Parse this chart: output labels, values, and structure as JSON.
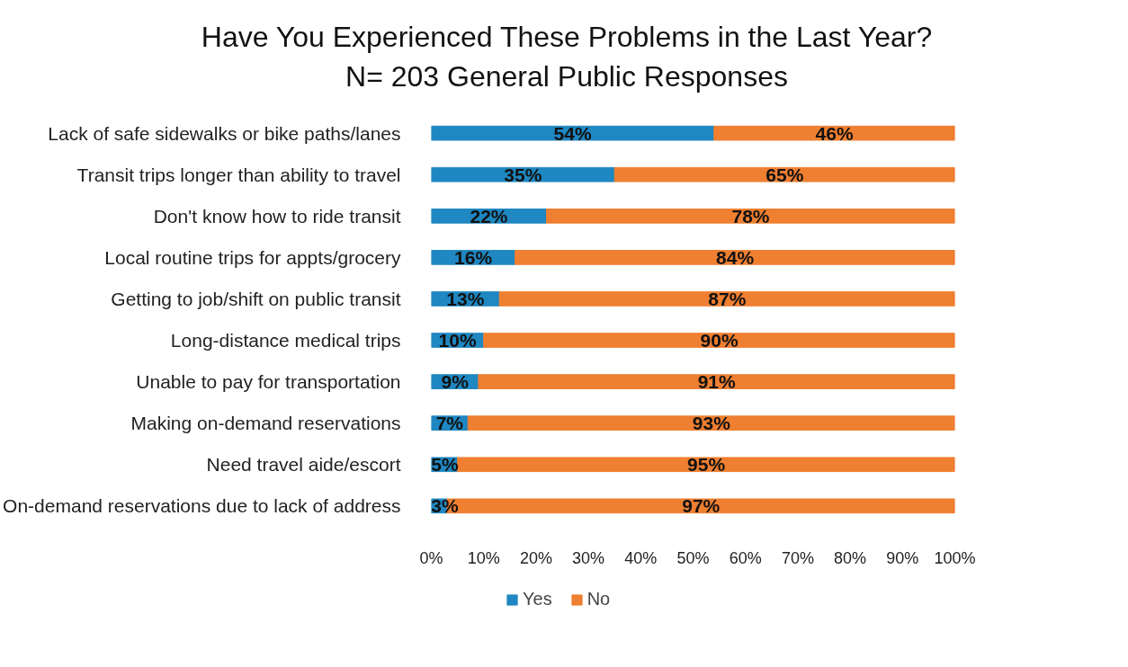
{
  "chart_data": {
    "type": "bar",
    "orientation": "horizontal",
    "stacked": true,
    "title": "Have You Experienced These Problems in the Last Year?",
    "subtitle": "N= 203 General Public Responses",
    "categories": [
      "Lack of safe sidewalks or bike paths/lanes",
      "Transit trips longer than ability to travel",
      "Don't know how to ride transit",
      "Local routine trips for appts/grocery",
      "Getting to job/shift on public transit",
      "Long-distance medical trips",
      "Unable to pay for transportation",
      "Making on-demand reservations",
      "Need travel aide/escort",
      "On-demand reservations due to lack of address"
    ],
    "series": [
      {
        "name": "Yes",
        "color": "#1f87c1",
        "values": [
          54,
          35,
          22,
          16,
          13,
          10,
          9,
          7,
          5,
          3
        ],
        "value_labels": [
          "54%",
          "35%",
          "22%",
          "16%",
          "13%",
          "10%",
          "9%",
          "7%",
          "5%",
          "3%"
        ]
      },
      {
        "name": "No",
        "color": "#ef7f31",
        "values": [
          46,
          65,
          78,
          84,
          87,
          90,
          91,
          93,
          95,
          97
        ],
        "value_labels": [
          "46%",
          "65%",
          "78%",
          "84%",
          "87%",
          "90%",
          "91%",
          "93%",
          "95%",
          "97%"
        ]
      }
    ],
    "xlim": [
      0,
      100
    ],
    "xticks": [
      {
        "value": 0,
        "label": "0%"
      },
      {
        "value": 10,
        "label": "10%"
      },
      {
        "value": 20,
        "label": "20%"
      },
      {
        "value": 30,
        "label": "30%"
      },
      {
        "value": 40,
        "label": "40%"
      },
      {
        "value": 50,
        "label": "50%"
      },
      {
        "value": 60,
        "label": "60%"
      },
      {
        "value": 70,
        "label": "70%"
      },
      {
        "value": 80,
        "label": "80%"
      },
      {
        "value": 90,
        "label": "90%"
      },
      {
        "value": 100,
        "label": "100%"
      }
    ],
    "grid": false,
    "legend": "bottom"
  }
}
